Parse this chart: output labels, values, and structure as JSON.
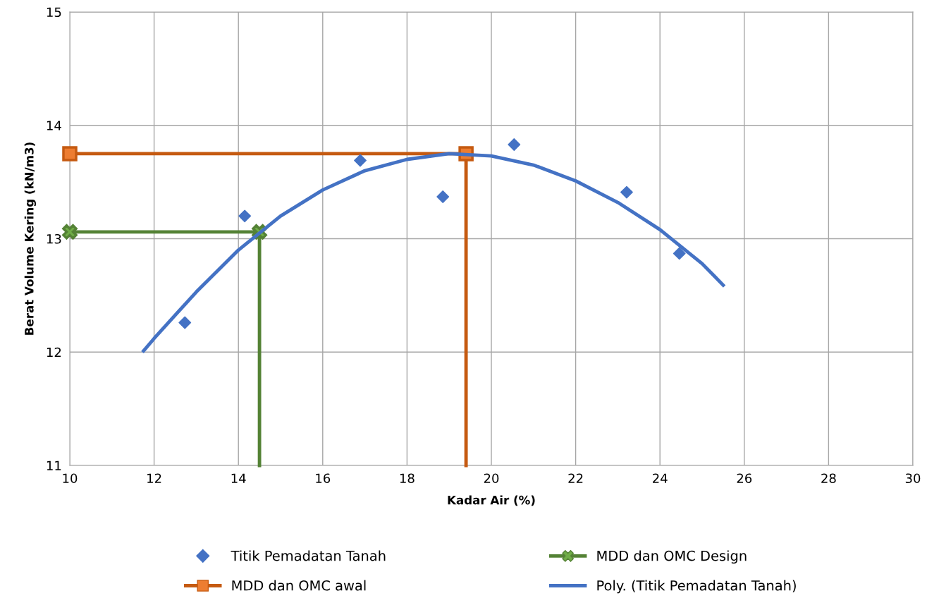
{
  "chart_data": {
    "type": "scatter",
    "xlabel": "Kadar Air (%)",
    "ylabel": "Berat Volume Kering (kN/m3)",
    "xlim": [
      10,
      30
    ],
    "xticks": [
      10,
      12,
      14,
      16,
      18,
      20,
      22,
      24,
      26,
      28,
      30
    ],
    "ylim": [
      11,
      15
    ],
    "yticks": [
      11,
      12,
      13,
      14,
      15
    ],
    "grid": true,
    "legend": "bottom",
    "series": [
      {
        "name": "Titik Pemadatan Tanah",
        "marker": "diamond",
        "color": "#4472c4",
        "x": [
          12.73,
          14.15,
          16.89,
          18.85,
          20.54,
          23.21,
          24.46
        ],
        "values": [
          12.26,
          13.2,
          13.69,
          13.37,
          13.83,
          13.41,
          12.87
        ]
      },
      {
        "name": "MDD dan OMC awal",
        "type": "line",
        "marker": "square",
        "color": "#c55a11",
        "x": [
          10,
          19.4,
          19.4
        ],
        "values": [
          13.75,
          13.75,
          11
        ]
      },
      {
        "name": "MDD dan OMC Design",
        "type": "line",
        "marker": "cross",
        "color": "#548235",
        "x": [
          10,
          14.5,
          14.5
        ],
        "values": [
          13.06,
          13.06,
          11
        ]
      },
      {
        "name": "Poly. (Titik Pemadatan Tanah)",
        "type": "line",
        "marker": "none",
        "color": "#4472c4",
        "x": [
          11.75,
          12,
          13,
          14,
          15,
          16,
          17,
          18,
          19,
          20,
          21,
          22,
          23,
          24,
          25,
          25.5
        ],
        "values": [
          12.01,
          12.12,
          12.53,
          12.9,
          13.2,
          13.43,
          13.6,
          13.7,
          13.75,
          13.73,
          13.65,
          13.51,
          13.32,
          13.08,
          12.78,
          12.59
        ]
      }
    ]
  }
}
